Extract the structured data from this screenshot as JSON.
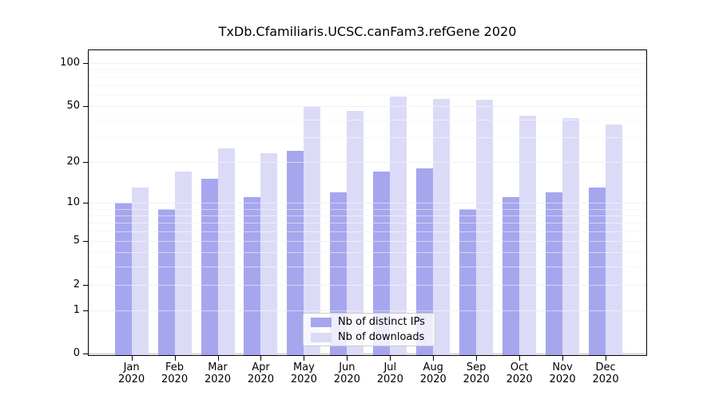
{
  "page": {
    "background": "#ffffff"
  },
  "chart_data": {
    "type": "bar",
    "title": "TxDb.Cfamiliaris.UCSC.canFam3.refGene 2020",
    "categories": [
      "Jan",
      "Feb",
      "Mar",
      "Apr",
      "May",
      "Jun",
      "Jul",
      "Aug",
      "Sep",
      "Oct",
      "Nov",
      "Dec"
    ],
    "category_year": "2020",
    "series": [
      {
        "name": "Nb of distinct IPs",
        "color": "#a6a6ee",
        "values": [
          10,
          9,
          15,
          11,
          24,
          12,
          17,
          18,
          9,
          11,
          12,
          13
        ]
      },
      {
        "name": "Nb of downloads",
        "color": "#dbdbf7",
        "values": [
          13,
          17,
          25,
          23,
          50,
          46,
          58,
          56,
          55,
          43,
          41,
          37
        ]
      }
    ],
    "xlabel": "",
    "ylabel": "",
    "yscale": "log1p",
    "ylim": [
      0,
      125
    ],
    "y_ticks": [
      0,
      1,
      2,
      5,
      10,
      20,
      50,
      100
    ],
    "y_minor_gridlines": [
      3,
      4,
      6,
      7,
      8,
      9,
      30,
      40,
      60,
      70,
      80,
      90
    ],
    "grid": true,
    "grid_over_bars": true,
    "legend_position": "lower center",
    "colors": {
      "grid_minor": "#f0f0f0",
      "grid_major": "#e3e3e3",
      "grid_zero": "#bdbdbd",
      "spine": "#000000"
    }
  }
}
